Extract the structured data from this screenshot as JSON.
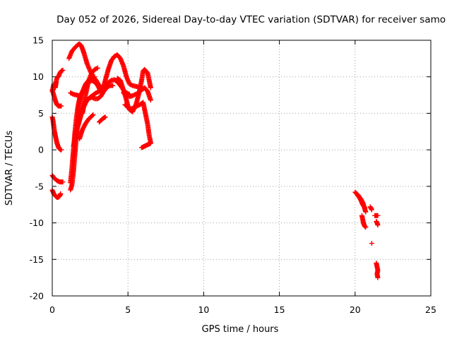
{
  "chart_data": {
    "type": "scatter",
    "title": "Day 052 of 2026, Sidereal Day-to-day VTEC variation (SDTVAR) for receiver samo",
    "xlabel": "GPS time / hours",
    "ylabel": "SDTVAR / TECUs",
    "xlim": [
      0,
      25
    ],
    "ylim": [
      -20,
      15
    ],
    "xticks": [
      0,
      5,
      10,
      15,
      20,
      25
    ],
    "yticks": [
      -20,
      -15,
      -10,
      -5,
      0,
      5,
      10,
      15
    ],
    "xtick_labels": [
      "0",
      "5",
      "10",
      "15",
      "20",
      "25"
    ],
    "ytick_labels": [
      "-20",
      "-15",
      "-10",
      "-5",
      "0",
      "5",
      "10",
      "15"
    ],
    "grid": true,
    "marker": "+",
    "color": "#ff0000",
    "series": [
      {
        "name": "s1",
        "x": [
          0.0,
          0.1,
          0.2,
          0.3,
          0.4,
          0.5,
          0.6,
          0.7
        ],
        "y": [
          8.0,
          9.0,
          8.5,
          9.8,
          10.0,
          10.5,
          10.8,
          10.9
        ]
      },
      {
        "name": "s2",
        "x": [
          0.0,
          0.1,
          0.2,
          0.3,
          0.4,
          0.5,
          0.6
        ],
        "y": [
          8.2,
          7.5,
          6.8,
          6.2,
          6.0,
          6.0,
          6.0
        ]
      },
      {
        "name": "s3",
        "x": [
          0.0,
          0.05,
          0.1,
          0.15,
          0.2,
          0.25,
          0.3,
          0.35,
          0.4,
          0.45,
          0.5,
          0.55,
          0.6
        ],
        "y": [
          4.5,
          4.0,
          3.2,
          2.5,
          2.0,
          1.5,
          1.0,
          0.7,
          0.4,
          0.2,
          0.1,
          0.0,
          0.0
        ]
      },
      {
        "name": "s4",
        "x": [
          0.0,
          0.1,
          0.2,
          0.3,
          0.4,
          0.5,
          0.6,
          0.7
        ],
        "y": [
          -3.5,
          -3.8,
          -4.0,
          -4.2,
          -4.3,
          -4.4,
          -4.4,
          -4.4
        ]
      },
      {
        "name": "s5",
        "x": [
          0.0,
          0.1,
          0.2,
          0.3,
          0.4,
          0.5,
          0.55
        ],
        "y": [
          -5.5,
          -6.0,
          -6.3,
          -6.5,
          -6.5,
          -6.3,
          -6.0
        ]
      },
      {
        "name": "s6",
        "x": [
          1.1,
          1.3,
          1.5,
          1.7,
          1.8,
          1.9,
          2.0,
          2.1,
          2.2,
          2.3
        ],
        "y": [
          12.5,
          13.5,
          14.0,
          14.4,
          14.5,
          14.3,
          13.8,
          13.2,
          12.5,
          11.8
        ]
      },
      {
        "name": "s7",
        "x": [
          2.3,
          2.5,
          2.7,
          2.9,
          3.1,
          3.3
        ],
        "y": [
          11.8,
          10.8,
          10.0,
          9.5,
          8.8,
          8.3
        ]
      },
      {
        "name": "s8",
        "x": [
          1.2,
          1.4,
          1.6,
          1.8
        ],
        "y": [
          7.8,
          7.6,
          7.5,
          7.4
        ]
      },
      {
        "name": "s9",
        "x": [
          1.2,
          1.3,
          1.4,
          1.5,
          1.6,
          1.7,
          1.8,
          1.9,
          2.0,
          2.2,
          2.4,
          2.6,
          2.8
        ],
        "y": [
          -5.5,
          -4.8,
          -3.0,
          -0.5,
          2.0,
          4.5,
          6.5,
          7.5,
          8.0,
          9.0,
          9.5,
          9.8,
          10.0
        ]
      },
      {
        "name": "s10",
        "x": [
          1.2,
          1.3,
          1.4,
          1.5,
          1.6,
          1.7,
          1.8,
          1.9,
          2.0,
          2.2,
          2.4,
          2.6,
          2.8,
          3.0,
          3.2
        ],
        "y": [
          -4.5,
          -2.5,
          0.0,
          2.5,
          4.5,
          6.0,
          7.0,
          7.5,
          8.0,
          8.8,
          9.2,
          9.5,
          9.3,
          8.8,
          8.0
        ]
      },
      {
        "name": "s11",
        "x": [
          1.4,
          1.6,
          1.8,
          2.0,
          2.2,
          2.4,
          2.6,
          2.8,
          3.0,
          3.2,
          3.4,
          3.6,
          3.8,
          4.0
        ],
        "y": [
          0.5,
          2.5,
          4.0,
          5.5,
          6.5,
          7.0,
          7.2,
          7.0,
          7.0,
          7.3,
          8.0,
          8.5,
          8.8,
          8.8
        ]
      },
      {
        "name": "s12",
        "x": [
          1.5,
          1.7,
          1.9,
          2.1,
          2.3,
          2.5,
          2.7,
          2.9,
          3.1,
          3.3,
          3.5,
          3.7,
          3.9,
          4.1,
          4.3,
          4.5,
          4.7,
          4.9,
          5.1
        ],
        "y": [
          2.0,
          3.5,
          5.0,
          6.0,
          6.8,
          7.2,
          7.5,
          7.8,
          8.0,
          8.3,
          8.8,
          9.2,
          9.5,
          9.6,
          9.3,
          8.8,
          8.2,
          7.8,
          7.6
        ]
      },
      {
        "name": "s13",
        "x": [
          2.0,
          2.2,
          2.4,
          2.6,
          2.8,
          3.0
        ],
        "y": [
          5.0,
          7.5,
          9.5,
          10.5,
          11.0,
          11.2
        ]
      },
      {
        "name": "s14",
        "x": [
          1.8,
          1.9,
          2.0,
          2.1,
          2.2,
          2.4,
          2.6,
          2.7
        ],
        "y": [
          1.5,
          2.2,
          2.8,
          3.2,
          3.6,
          4.2,
          4.6,
          4.8
        ]
      },
      {
        "name": "s15",
        "x": [
          3.1,
          3.3,
          3.5
        ],
        "y": [
          3.8,
          4.2,
          4.5
        ]
      },
      {
        "name": "s16",
        "x": [
          3.3,
          3.5,
          3.7,
          3.9,
          4.1,
          4.3,
          4.5,
          4.7,
          4.9,
          5.1,
          5.3,
          5.5,
          5.7
        ],
        "y": [
          8.0,
          9.5,
          11.0,
          12.2,
          12.8,
          13.0,
          12.5,
          11.5,
          10.0,
          9.0,
          8.8,
          8.7,
          8.6
        ]
      },
      {
        "name": "s17",
        "x": [
          4.3,
          4.5,
          4.7,
          4.9,
          5.0,
          5.1,
          5.3,
          5.5,
          5.7,
          5.9,
          6.0,
          6.1,
          6.3,
          6.5
        ],
        "y": [
          9.8,
          9.5,
          8.2,
          6.8,
          6.0,
          5.5,
          5.2,
          6.0,
          7.5,
          9.5,
          10.8,
          11.0,
          10.5,
          8.5
        ]
      },
      {
        "name": "s18",
        "x": [
          4.7,
          4.9,
          5.1,
          5.3,
          5.5,
          5.7,
          5.9,
          6.1,
          6.3,
          6.5
        ],
        "y": [
          7.8,
          7.5,
          7.3,
          7.4,
          7.6,
          7.8,
          8.2,
          8.5,
          8.0,
          6.8
        ]
      },
      {
        "name": "s19",
        "x": [
          4.8,
          5.0,
          5.2,
          5.4,
          5.6,
          5.8,
          6.0,
          6.1,
          6.2,
          6.3,
          6.4,
          6.5
        ],
        "y": [
          6.2,
          5.8,
          5.6,
          5.8,
          6.0,
          6.2,
          6.5,
          5.5,
          4.5,
          3.5,
          2.0,
          1.0
        ]
      },
      {
        "name": "s20",
        "x": [
          5.9,
          6.0,
          6.1,
          6.2,
          6.3,
          6.4,
          6.5
        ],
        "y": [
          0.3,
          0.4,
          0.5,
          0.6,
          0.7,
          0.8,
          0.9
        ]
      },
      {
        "name": "s21",
        "x": [
          20.0,
          20.1,
          20.2,
          20.3,
          20.4,
          20.5,
          20.6,
          20.65,
          20.7
        ],
        "y": [
          -5.8,
          -6.0,
          -6.2,
          -6.5,
          -6.8,
          -7.2,
          -7.8,
          -8.2,
          -8.5
        ]
      },
      {
        "name": "s22",
        "x": [
          20.1,
          20.2,
          20.3,
          20.4,
          20.5,
          20.6,
          20.65
        ],
        "y": [
          -6.0,
          -6.3,
          -6.6,
          -7.0,
          -7.5,
          -7.8,
          -8.0
        ]
      },
      {
        "name": "s23",
        "x": [
          20.45,
          20.5,
          20.55,
          20.6,
          20.65,
          20.7
        ],
        "y": [
          -9.0,
          -9.5,
          -10.0,
          -10.3,
          -10.5,
          -10.6
        ]
      },
      {
        "name": "s24",
        "x": [
          21.0,
          21.05,
          21.1
        ],
        "y": [
          -7.8,
          -8.0,
          -8.2
        ]
      },
      {
        "name": "s25",
        "x": [
          21.1
        ],
        "y": [
          -12.8
        ]
      },
      {
        "name": "s26",
        "x": [
          21.3,
          21.4,
          21.5
        ],
        "y": [
          -9.0,
          -9.0,
          -9.0
        ]
      },
      {
        "name": "s27",
        "x": [
          21.4,
          21.45,
          21.5
        ],
        "y": [
          -9.8,
          -10.0,
          -10.3
        ]
      },
      {
        "name": "s28",
        "x": [
          21.4,
          21.45,
          21.5,
          21.45,
          21.5
        ],
        "y": [
          -15.5,
          -16.0,
          -16.5,
          -17.0,
          -17.5
        ]
      }
    ]
  }
}
